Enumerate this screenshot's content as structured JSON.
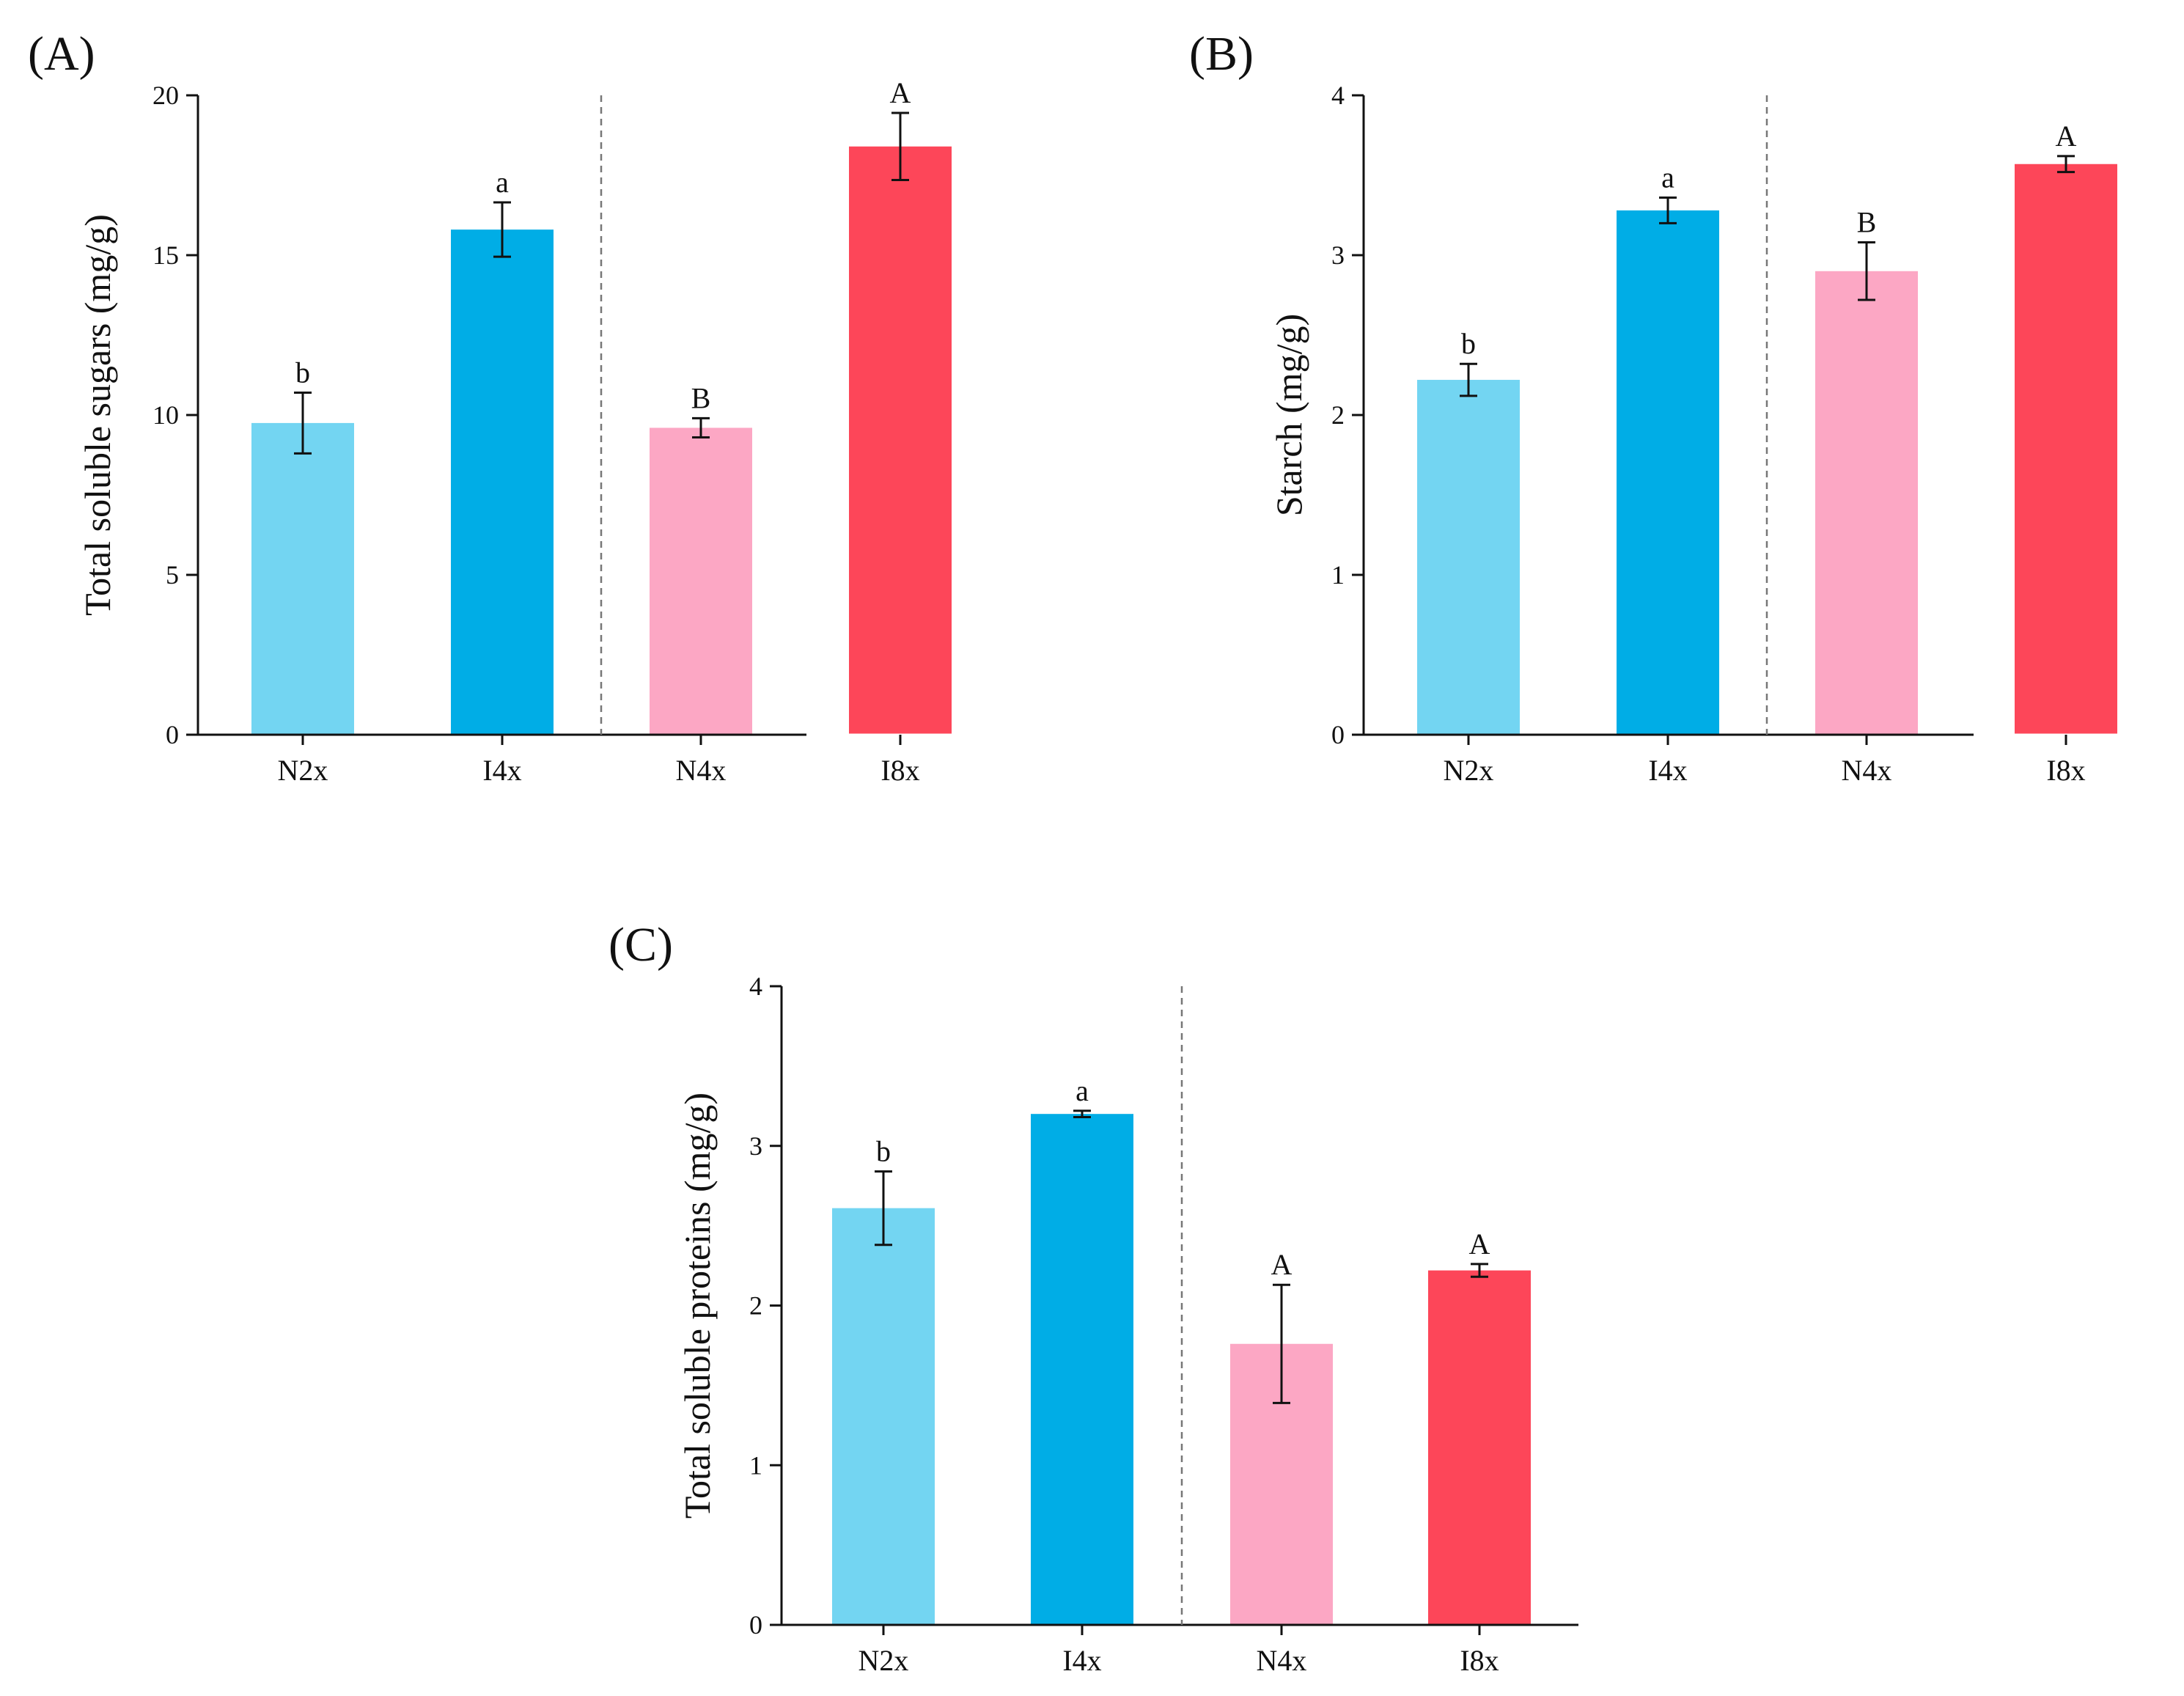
{
  "chart_data": [
    {
      "type": "bar",
      "panel_label": "(A)",
      "ylabel": "Total soluble sugars (mg/g)",
      "categories": [
        "N2x",
        "I4x",
        "N4x",
        "I8x"
      ],
      "values": [
        9.75,
        15.8,
        9.6,
        18.4
      ],
      "errors": [
        0.95,
        0.85,
        0.3,
        1.05
      ],
      "significance": [
        "b",
        "a",
        "B",
        "A"
      ],
      "colors": [
        "#73d5f2",
        "#00ade6",
        "#fca7c4",
        "#fd4659"
      ],
      "ylim": [
        0,
        20
      ],
      "yticks": [
        0,
        5,
        10,
        15,
        20
      ],
      "ytick_labels": [
        "0",
        "5",
        "10",
        "15",
        "20"
      ]
    },
    {
      "type": "bar",
      "panel_label": "(B)",
      "ylabel": "Starch (mg/g)",
      "categories": [
        "N2x",
        "I4x",
        "N4x",
        "I8x"
      ],
      "values": [
        2.22,
        3.28,
        2.9,
        3.57
      ],
      "errors": [
        0.1,
        0.08,
        0.18,
        0.05
      ],
      "significance": [
        "b",
        "a",
        "B",
        "A"
      ],
      "colors": [
        "#73d5f2",
        "#00ade6",
        "#fca7c4",
        "#fd4659"
      ],
      "ylim": [
        0,
        4
      ],
      "yticks": [
        0,
        1,
        2,
        3,
        4
      ],
      "ytick_labels": [
        "0",
        "1",
        "2",
        "3",
        "4"
      ]
    },
    {
      "type": "bar",
      "panel_label": "(C)",
      "ylabel": "Total soluble proteins (mg/g)",
      "categories": [
        "N2x",
        "I4x",
        "N4x",
        "I8x"
      ],
      "values": [
        2.61,
        3.2,
        1.76,
        2.22
      ],
      "errors": [
        0.23,
        0.02,
        0.37,
        0.04
      ],
      "significance": [
        "b",
        "a",
        "A",
        "A"
      ],
      "colors": [
        "#73d5f2",
        "#00ade6",
        "#fca7c4",
        "#fd4659"
      ],
      "ylim": [
        0,
        4
      ],
      "yticks": [
        0,
        1,
        2,
        3,
        4
      ],
      "ytick_labels": [
        "0",
        "1",
        "2",
        "3",
        "4"
      ]
    }
  ]
}
